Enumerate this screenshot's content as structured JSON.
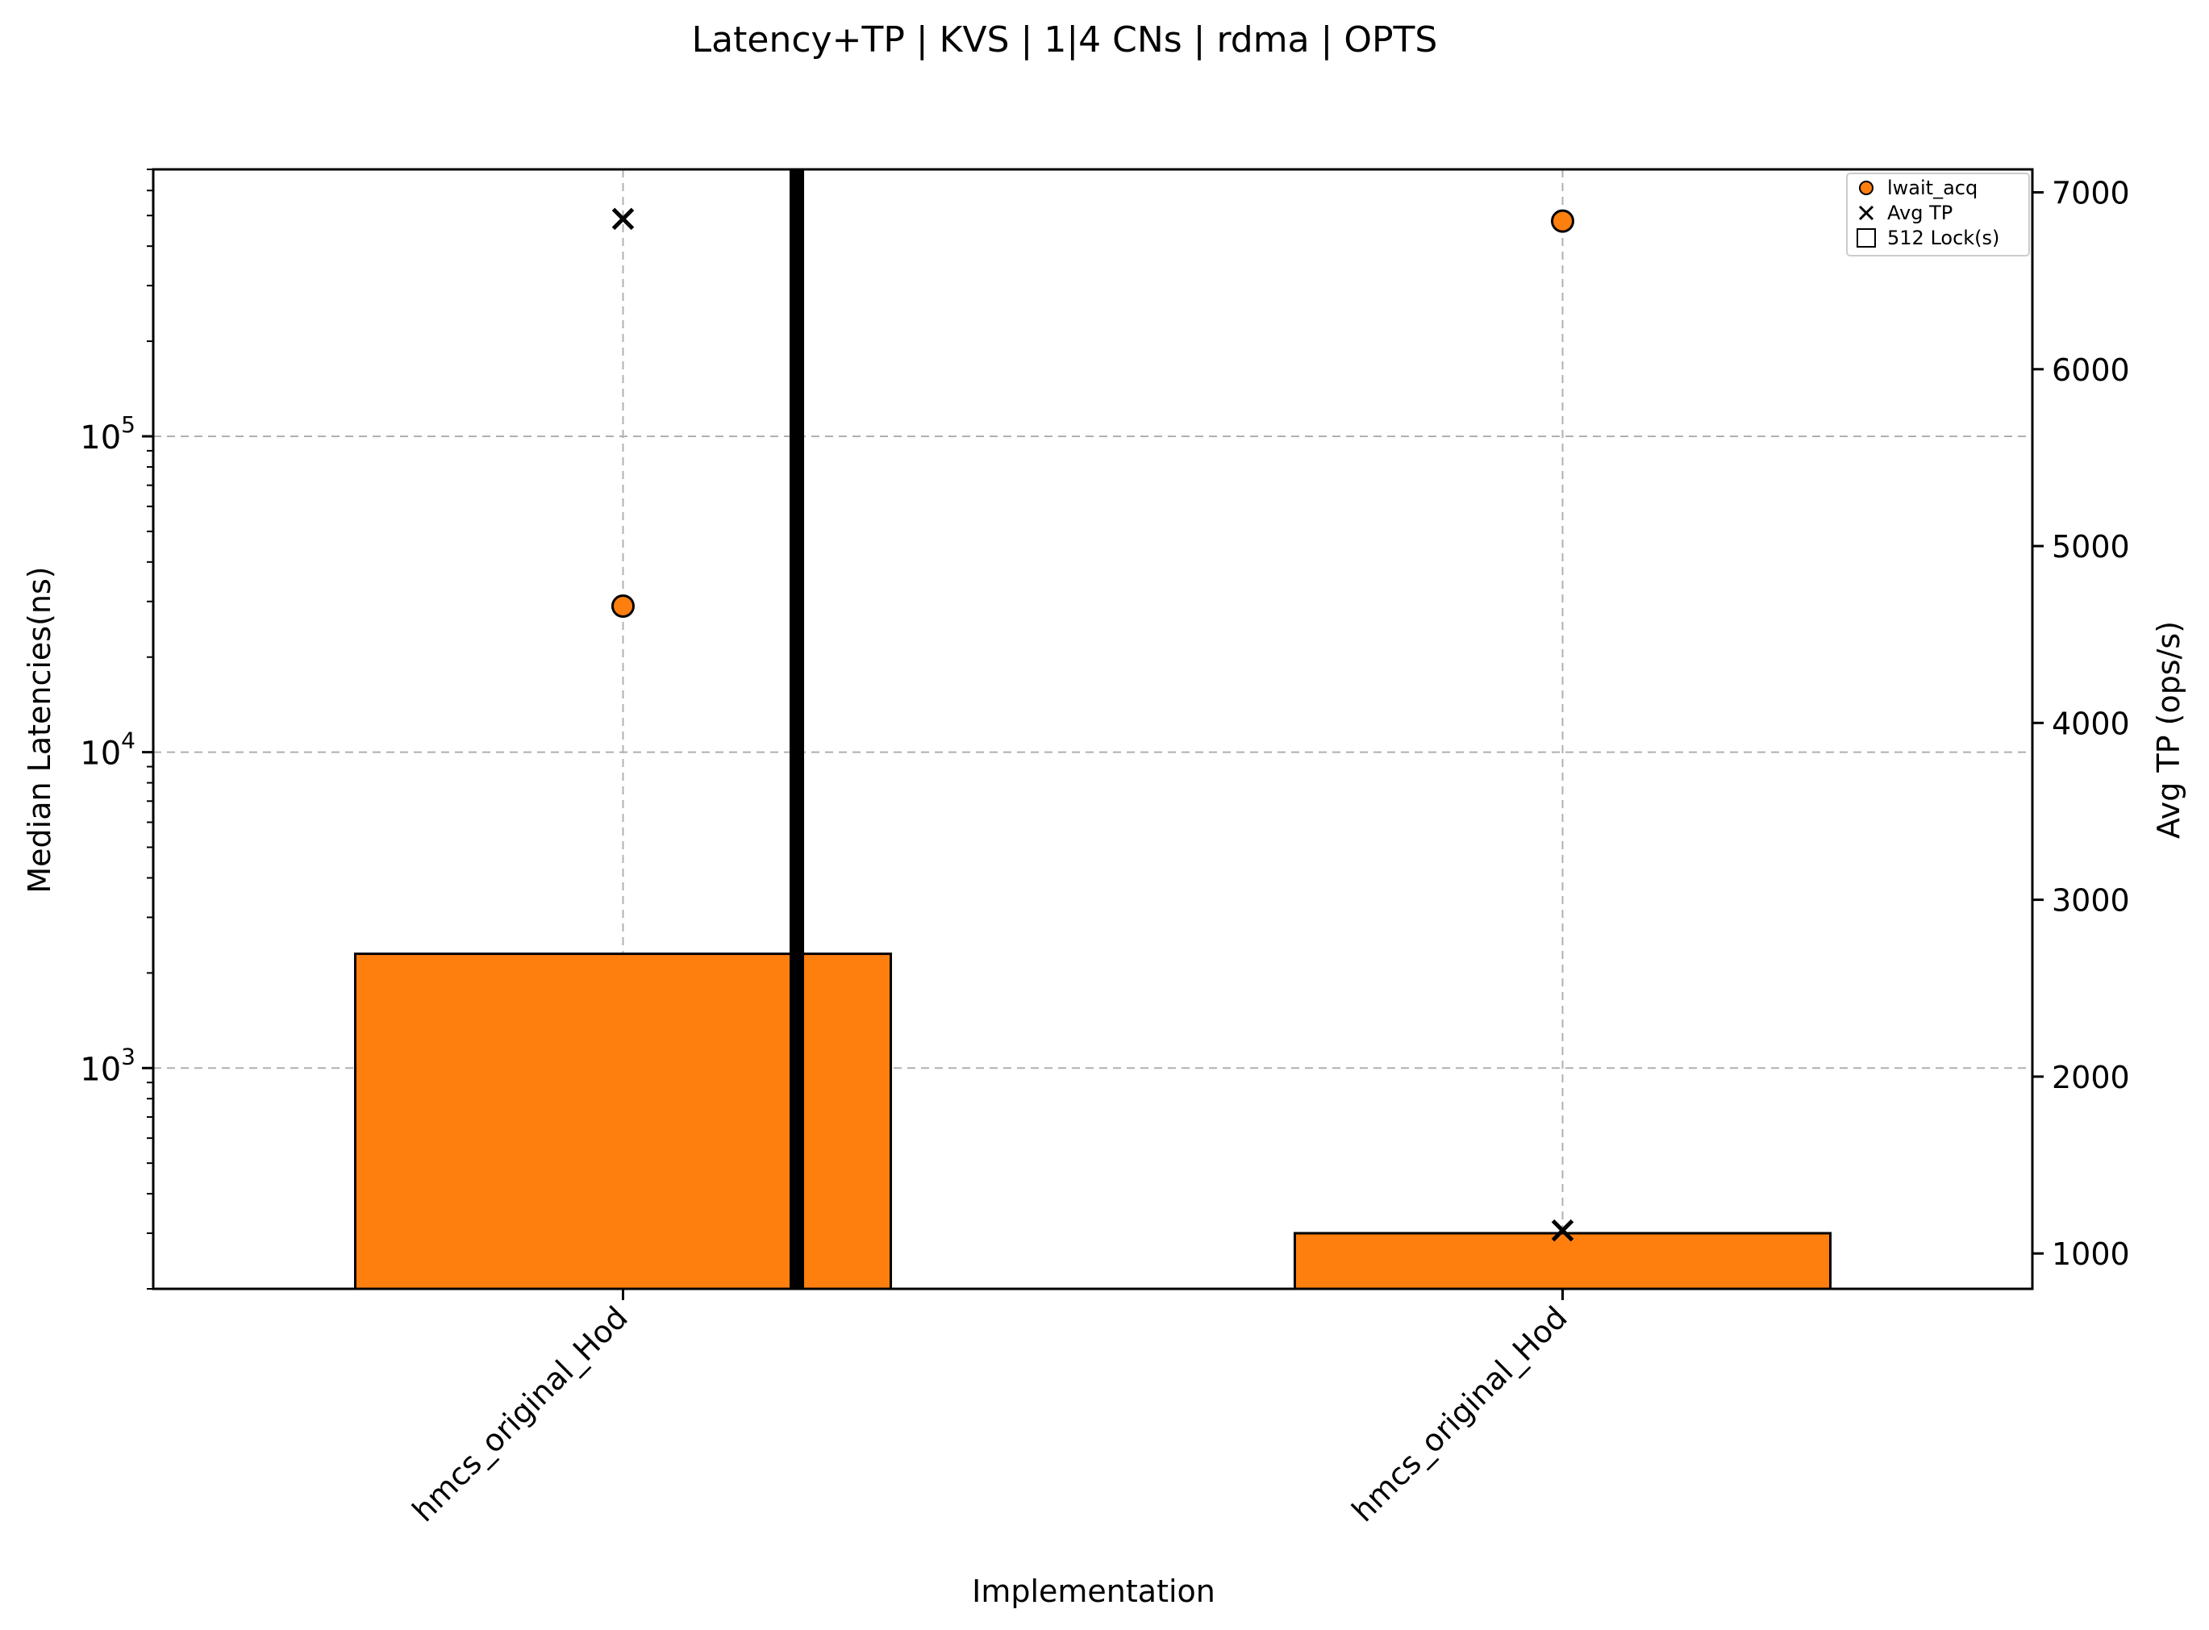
{
  "chart_data": {
    "type": "bar",
    "title": "Latency+TP | KVS | 1|4 CNs | rdma | OPTS",
    "xlabel": "Implementation",
    "ylabel": "Median Latencies(ns)",
    "y2label": "Avg TP (ops/s)",
    "yscale": "log",
    "ylim": [
      200,
      700000
    ],
    "y2lim": [
      800,
      7130
    ],
    "grid": true,
    "legend_position": "upper-right",
    "categories": [
      "hmcs_original_Hod",
      "hmcs_original_Hod"
    ],
    "y_ticks": [
      {
        "value": 1000,
        "base": "10",
        "exp": "3"
      },
      {
        "value": 10000,
        "base": "10",
        "exp": "4"
      },
      {
        "value": 100000,
        "base": "10",
        "exp": "5"
      }
    ],
    "y2_ticks": [
      1000,
      2000,
      3000,
      4000,
      5000,
      6000,
      7000
    ],
    "series": [
      {
        "name": "512 Lock(s)",
        "kind": "bar",
        "axis": "left",
        "values": [
          2300,
          300
        ]
      },
      {
        "name": "lwait_acq",
        "kind": "scatter",
        "marker": "circle",
        "axis": "left",
        "values": [
          29000,
          480000
        ]
      },
      {
        "name": "Avg TP",
        "kind": "scatter",
        "marker": "x",
        "axis": "right",
        "values": [
          6850,
          1130
        ]
      }
    ],
    "separator": true,
    "colors": {
      "bar": "#ff7f0e",
      "marker": "#ff7f0e",
      "edge": "#000000",
      "grid": "#b0b0b0"
    }
  }
}
